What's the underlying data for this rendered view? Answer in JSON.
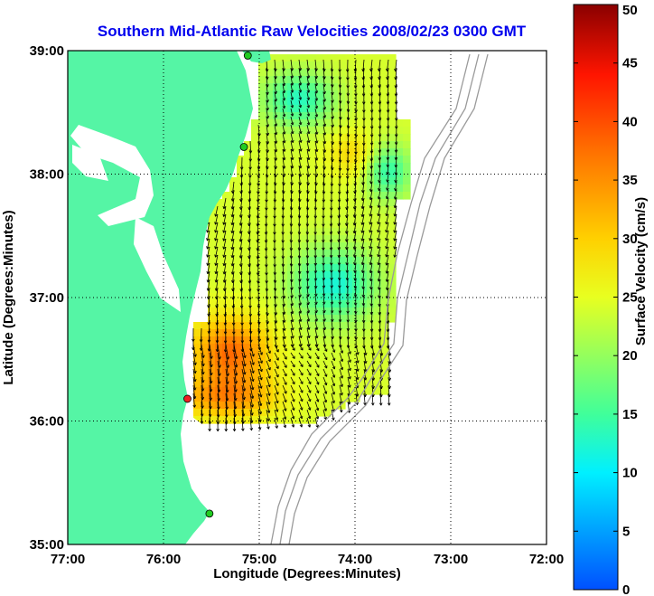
{
  "title": "Southern Mid-Atlantic Raw Velocities 2008/02/23 0300 GMT",
  "xlabel": "Longitude (Degrees:Minutes)",
  "ylabel": "Latitude (Degrees:Minutes)",
  "colorbar": {
    "label": "Surface Velocity (cm/s)",
    "min": 0,
    "max": 50,
    "ticks": [
      "0",
      "5",
      "10",
      "15",
      "20",
      "25",
      "30",
      "35",
      "40",
      "45",
      "50"
    ]
  },
  "axes": {
    "xlim": [
      -77,
      -72
    ],
    "ylim": [
      35,
      39
    ],
    "xticks": [
      "77:00",
      "76:00",
      "75:00",
      "74:00",
      "73:00",
      "72:00"
    ],
    "yticks": [
      "35:00",
      "36:00",
      "37:00",
      "38:00",
      "39:00"
    ],
    "grid": "dotted"
  },
  "colors": {
    "land": "#55f5a5",
    "title": "#0000ee",
    "bathymetry": "#9a9a9a",
    "site_active": "#22cc22",
    "site_inactive": "#ee2222"
  },
  "stations": [
    {
      "lon": -75.12,
      "lat": 38.96,
      "status": "active"
    },
    {
      "lon": -75.16,
      "lat": 38.22,
      "status": "active"
    },
    {
      "lon": -75.75,
      "lat": 36.18,
      "status": "inactive"
    },
    {
      "lon": -75.52,
      "lat": 35.25,
      "status": "active"
    }
  ]
}
